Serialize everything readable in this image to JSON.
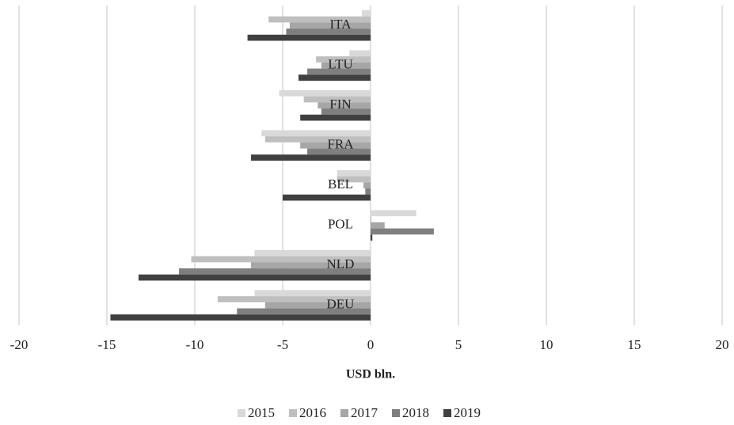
{
  "chart_data": {
    "type": "hbar",
    "x_label": "USD bln.",
    "categories": [
      "ITA",
      "LTU",
      "FIN",
      "FRA",
      "BEL",
      "POL",
      "NLD",
      "DEU"
    ],
    "series": [
      {
        "name": "2015",
        "color": "#d9d9d9",
        "values": [
          -0.5,
          -1.2,
          -5.2,
          -6.2,
          -1.9,
          2.6,
          -6.6,
          -6.6
        ]
      },
      {
        "name": "2016",
        "color": "#bfbfbf",
        "values": [
          -5.8,
          -3.1,
          -3.8,
          -6.0,
          -1.9,
          0.05,
          -10.2,
          -8.7
        ]
      },
      {
        "name": "2017",
        "color": "#a6a6a6",
        "values": [
          -4.6,
          -2.8,
          -3.0,
          -4.0,
          -0.4,
          0.8,
          -6.8,
          -6.0
        ]
      },
      {
        "name": "2018",
        "color": "#7f7f7f",
        "values": [
          -4.8,
          -3.6,
          -2.8,
          -3.6,
          -0.3,
          3.6,
          -10.9,
          -7.6
        ]
      },
      {
        "name": "2019",
        "color": "#404040",
        "values": [
          -7.0,
          -4.1,
          -4.0,
          -6.8,
          -5.0,
          0.1,
          -13.2,
          -14.8
        ]
      }
    ],
    "xlim": [
      -20,
      20
    ],
    "xticks": [
      -20,
      -15,
      -10,
      -5,
      0,
      5,
      10,
      15,
      20
    ],
    "grid": true,
    "legend": "bottom"
  }
}
